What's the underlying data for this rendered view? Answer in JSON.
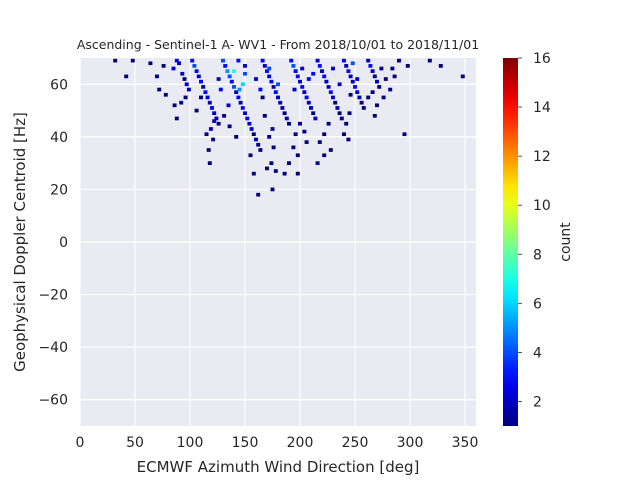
{
  "chart_data": {
    "type": "heatmap",
    "title": "Ascending - Sentinel-1 A- WV1 - From 2018/10/01 to 2018/11/01",
    "xlabel": "ECMWF Azimuth Wind Direction [deg]",
    "ylabel": "Geophysical Doppler Centroid [Hz]",
    "xlim": [
      0,
      360
    ],
    "ylim": [
      -70,
      70
    ],
    "x_ticks": [
      0,
      50,
      100,
      150,
      200,
      250,
      300,
      350
    ],
    "y_ticks": [
      -60,
      -40,
      -20,
      0,
      20,
      40,
      60
    ],
    "grid": true,
    "colorbar": {
      "label": "count",
      "colormap": "jet",
      "range": [
        1,
        16
      ],
      "ticks": [
        2,
        4,
        6,
        8,
        10,
        12,
        14,
        16
      ]
    },
    "bin_size": {
      "x": 3.6,
      "y": 1.4
    },
    "points": [
      [
        32,
        69,
        1
      ],
      [
        48,
        69,
        1
      ],
      [
        42,
        63,
        1
      ],
      [
        64,
        68,
        1
      ],
      [
        70,
        63,
        1
      ],
      [
        76,
        67,
        1
      ],
      [
        72,
        58,
        1
      ],
      [
        78,
        56,
        1
      ],
      [
        85,
        66,
        2
      ],
      [
        88,
        69,
        3
      ],
      [
        90,
        68,
        2
      ],
      [
        93,
        64,
        2
      ],
      [
        95,
        62,
        1
      ],
      [
        97,
        60,
        2
      ],
      [
        99,
        58,
        2
      ],
      [
        86,
        52,
        1
      ],
      [
        88,
        47,
        1
      ],
      [
        92,
        53,
        1
      ],
      [
        96,
        55,
        1
      ],
      [
        102,
        69,
        3
      ],
      [
        104,
        67,
        4
      ],
      [
        106,
        65,
        3
      ],
      [
        108,
        63,
        2
      ],
      [
        110,
        61,
        3
      ],
      [
        112,
        59,
        2
      ],
      [
        114,
        57,
        3
      ],
      [
        116,
        55,
        2
      ],
      [
        118,
        53,
        2
      ],
      [
        120,
        51,
        3
      ],
      [
        122,
        49,
        2
      ],
      [
        124,
        47,
        2
      ],
      [
        126,
        45,
        1
      ],
      [
        119,
        43,
        2
      ],
      [
        115,
        41,
        1
      ],
      [
        121,
        39,
        1
      ],
      [
        117,
        35,
        1
      ],
      [
        118,
        30,
        1
      ],
      [
        122,
        46,
        2
      ],
      [
        110,
        55,
        1
      ],
      [
        106,
        50,
        1
      ],
      [
        130,
        69,
        4
      ],
      [
        132,
        67,
        3
      ],
      [
        134,
        65,
        5
      ],
      [
        136,
        63,
        4
      ],
      [
        138,
        61,
        3
      ],
      [
        140,
        59,
        4
      ],
      [
        142,
        57,
        2
      ],
      [
        144,
        55,
        3
      ],
      [
        146,
        53,
        2
      ],
      [
        148,
        51,
        3
      ],
      [
        150,
        49,
        2
      ],
      [
        152,
        47,
        3
      ],
      [
        154,
        45,
        2
      ],
      [
        156,
        43,
        2
      ],
      [
        158,
        41,
        1
      ],
      [
        160,
        39,
        2
      ],
      [
        162,
        37,
        1
      ],
      [
        164,
        35,
        1
      ],
      [
        155,
        33,
        1
      ],
      [
        158,
        26,
        1
      ],
      [
        162,
        18,
        1
      ],
      [
        140,
        65,
        7
      ],
      [
        145,
        58,
        5
      ],
      [
        148,
        60,
        6
      ],
      [
        150,
        64,
        4
      ],
      [
        136,
        44,
        1
      ],
      [
        142,
        40,
        1
      ],
      [
        135,
        52,
        2
      ],
      [
        128,
        58,
        3
      ],
      [
        126,
        62,
        2
      ],
      [
        131,
        48,
        1
      ],
      [
        144,
        69,
        3
      ],
      [
        150,
        67,
        2
      ],
      [
        166,
        69,
        3
      ],
      [
        168,
        67,
        2
      ],
      [
        170,
        65,
        3
      ],
      [
        172,
        63,
        2
      ],
      [
        174,
        61,
        3
      ],
      [
        176,
        59,
        2
      ],
      [
        178,
        57,
        3
      ],
      [
        180,
        55,
        2
      ],
      [
        182,
        53,
        2
      ],
      [
        184,
        51,
        2
      ],
      [
        186,
        49,
        1
      ],
      [
        188,
        47,
        2
      ],
      [
        190,
        45,
        1
      ],
      [
        175,
        43,
        1
      ],
      [
        172,
        40,
        1
      ],
      [
        176,
        36,
        1
      ],
      [
        174,
        30,
        1
      ],
      [
        170,
        28,
        1
      ],
      [
        178,
        27,
        1
      ],
      [
        175,
        20,
        1
      ],
      [
        166,
        55,
        1
      ],
      [
        168,
        48,
        1
      ],
      [
        180,
        60,
        4
      ],
      [
        172,
        66,
        4
      ],
      [
        164,
        58,
        3
      ],
      [
        160,
        62,
        2
      ],
      [
        192,
        69,
        3
      ],
      [
        194,
        67,
        4
      ],
      [
        196,
        65,
        3
      ],
      [
        198,
        63,
        3
      ],
      [
        200,
        61,
        2
      ],
      [
        202,
        59,
        3
      ],
      [
        204,
        57,
        2
      ],
      [
        206,
        55,
        3
      ],
      [
        208,
        53,
        2
      ],
      [
        210,
        51,
        2
      ],
      [
        212,
        49,
        1
      ],
      [
        214,
        47,
        2
      ],
      [
        200,
        45,
        1
      ],
      [
        196,
        41,
        1
      ],
      [
        194,
        36,
        1
      ],
      [
        198,
        33,
        1
      ],
      [
        190,
        30,
        1
      ],
      [
        186,
        26,
        1
      ],
      [
        198,
        26,
        1
      ],
      [
        204,
        42,
        1
      ],
      [
        206,
        38,
        1
      ],
      [
        202,
        66,
        2
      ],
      [
        208,
        62,
        3
      ],
      [
        195,
        58,
        2
      ],
      [
        216,
        69,
        2
      ],
      [
        218,
        67,
        3
      ],
      [
        220,
        65,
        2
      ],
      [
        222,
        63,
        3
      ],
      [
        224,
        61,
        2
      ],
      [
        226,
        59,
        2
      ],
      [
        228,
        57,
        3
      ],
      [
        230,
        55,
        2
      ],
      [
        232,
        53,
        1
      ],
      [
        234,
        51,
        2
      ],
      [
        236,
        49,
        1
      ],
      [
        238,
        47,
        1
      ],
      [
        226,
        45,
        1
      ],
      [
        222,
        41,
        1
      ],
      [
        218,
        38,
        1
      ],
      [
        222,
        33,
        1
      ],
      [
        216,
        30,
        1
      ],
      [
        228,
        35,
        1
      ],
      [
        212,
        64,
        3
      ],
      [
        230,
        66,
        2
      ],
      [
        240,
        69,
        3
      ],
      [
        242,
        67,
        2
      ],
      [
        244,
        65,
        3
      ],
      [
        246,
        63,
        2
      ],
      [
        248,
        61,
        2
      ],
      [
        250,
        59,
        3
      ],
      [
        252,
        57,
        2
      ],
      [
        254,
        55,
        2
      ],
      [
        256,
        53,
        1
      ],
      [
        258,
        51,
        1
      ],
      [
        245,
        49,
        1
      ],
      [
        242,
        45,
        1
      ],
      [
        240,
        41,
        1
      ],
      [
        244,
        39,
        1
      ],
      [
        248,
        68,
        4
      ],
      [
        236,
        60,
        2
      ],
      [
        252,
        62,
        2
      ],
      [
        246,
        56,
        1
      ],
      [
        262,
        69,
        2
      ],
      [
        264,
        67,
        3
      ],
      [
        266,
        65,
        2
      ],
      [
        268,
        63,
        1
      ],
      [
        270,
        61,
        2
      ],
      [
        272,
        59,
        1
      ],
      [
        266,
        57,
        1
      ],
      [
        262,
        55,
        1
      ],
      [
        268,
        48,
        1
      ],
      [
        270,
        52,
        1
      ],
      [
        274,
        66,
        1
      ],
      [
        278,
        62,
        1
      ],
      [
        282,
        58,
        1
      ],
      [
        276,
        55,
        1
      ],
      [
        284,
        66,
        1
      ],
      [
        290,
        69,
        1
      ],
      [
        298,
        67,
        1
      ],
      [
        318,
        69,
        1
      ],
      [
        328,
        67,
        1
      ],
      [
        348,
        63,
        1
      ],
      [
        286,
        63,
        1
      ],
      [
        295,
        41,
        1
      ]
    ]
  }
}
